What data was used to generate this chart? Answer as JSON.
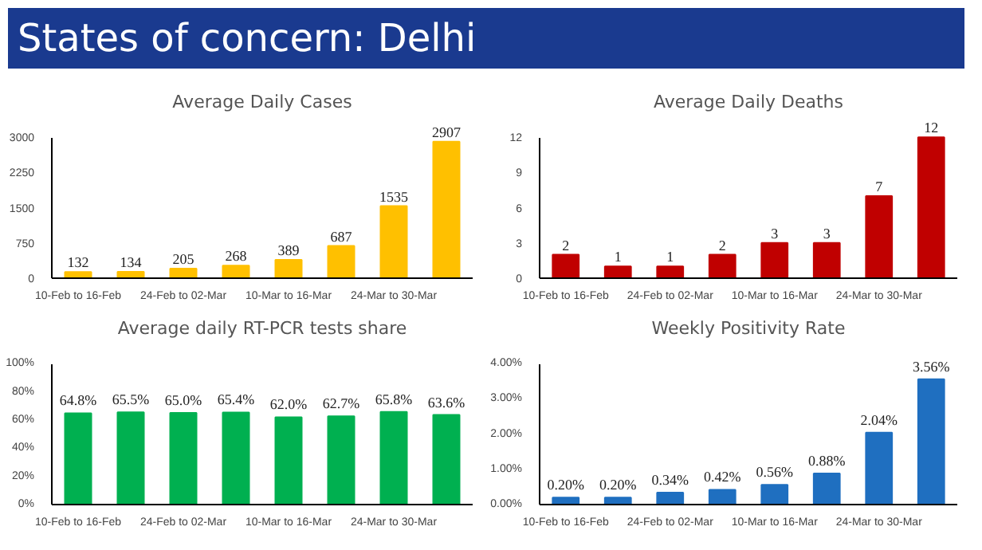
{
  "chart_data": [
    {
      "type": "other",
      "title": "States of concern: Delhi"
    },
    {
      "type": "bar",
      "title": "Average Daily Cases",
      "categories": [
        "10-Feb to 16-Feb",
        null,
        "24-Feb to 02-Mar",
        null,
        "10-Mar to 16-Mar",
        null,
        "24-Mar to 30-Mar",
        null
      ],
      "values": [
        132,
        134,
        205,
        268,
        389,
        687,
        1535,
        2907
      ],
      "color": "#ffc000",
      "ylim": [
        0,
        3000
      ],
      "yticks": [
        0,
        750,
        1500,
        2250,
        3000
      ],
      "data_labels": true,
      "grid": false
    },
    {
      "type": "bar",
      "title": "Average Daily Deaths",
      "categories": [
        "10-Feb to 16-Feb",
        null,
        "24-Feb to 02-Mar",
        null,
        "10-Mar to 16-Mar",
        null,
        "24-Mar to 30-Mar",
        null
      ],
      "values": [
        2,
        1,
        1,
        2,
        3,
        3,
        7,
        12
      ],
      "color": "#c00000",
      "ylim": [
        0,
        12
      ],
      "yticks": [
        0,
        3,
        6,
        9,
        12
      ],
      "data_labels": true,
      "grid": false
    },
    {
      "type": "bar",
      "title": "Average daily RT-PCR tests share",
      "categories": [
        "10-Feb to 16-Feb",
        null,
        "24-Feb to 02-Mar",
        null,
        "10-Mar to 16-Mar",
        null,
        "24-Mar to 30-Mar",
        null
      ],
      "values": [
        64.8,
        65.5,
        65.0,
        65.4,
        62.0,
        62.7,
        65.8,
        63.6
      ],
      "value_labels": [
        "64.8%",
        "65.5%",
        "65.0%",
        "65.4%",
        "62.0%",
        "62.7%",
        "65.8%",
        "63.6%"
      ],
      "color": "#00b050",
      "ylim": [
        0,
        100
      ],
      "yticks": [
        {
          "value": 0,
          "label": "0%"
        },
        {
          "value": 20,
          "label": "20%"
        },
        {
          "value": 40,
          "label": "40%"
        },
        {
          "value": 60,
          "label": "60%"
        },
        {
          "value": 80,
          "label": "80%"
        },
        {
          "value": 100,
          "label": "100%"
        }
      ],
      "grid": false
    },
    {
      "type": "bar",
      "title": "Weekly Positivity Rate",
      "categories": [
        "10-Feb to 16-Feb",
        null,
        "24-Feb to 02-Mar",
        null,
        "10-Mar to 16-Mar",
        null,
        "24-Mar to 30-Mar",
        null
      ],
      "values": [
        0.2,
        0.2,
        0.34,
        0.42,
        0.56,
        0.88,
        2.04,
        3.56
      ],
      "value_labels": [
        "0.20%",
        "0.20%",
        "0.34%",
        "0.42%",
        "0.56%",
        "0.88%",
        "2.04%",
        "3.56%"
      ],
      "color": "#1f6fc0",
      "ylim": [
        0,
        4
      ],
      "yticks": [
        {
          "value": 0,
          "label": "0.00%"
        },
        {
          "value": 1,
          "label": "1.00%"
        },
        {
          "value": 2,
          "label": "2.00%"
        },
        {
          "value": 3,
          "label": "3.00%"
        },
        {
          "value": 4,
          "label": "4.00%"
        }
      ],
      "grid": false
    }
  ]
}
